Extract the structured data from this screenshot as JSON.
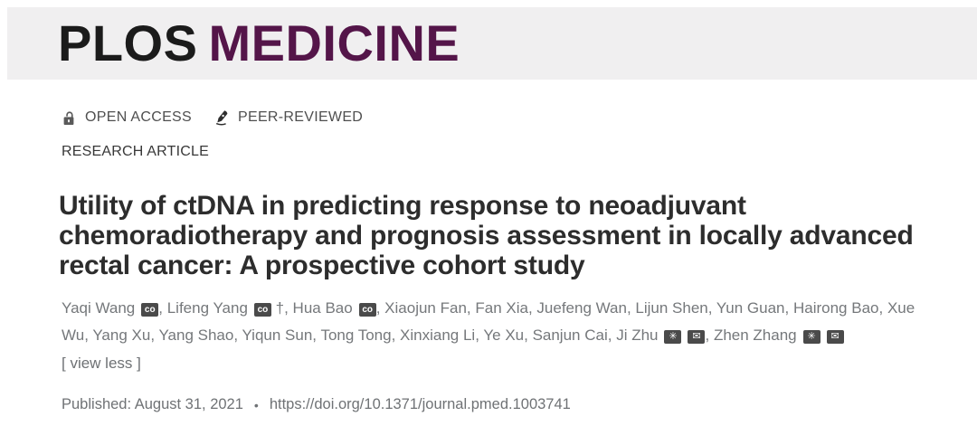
{
  "masthead": {
    "plos": "PLOS",
    "journal": "MEDICINE"
  },
  "meta_bar": {
    "open_access": "OPEN ACCESS",
    "peer_reviewed": "PEER-REVIEWED"
  },
  "article_type": "RESEARCH ARTICLE",
  "title": "Utility of ctDNA in predicting response to neoadjuvant chemoradiotherapy and prognosis assessment in locally advanced rectal cancer: A prospective cohort study",
  "authors": [
    {
      "name": "Yaqi Wang",
      "badges": [
        "equal-contribution"
      ]
    },
    {
      "name": "Lifeng Yang",
      "badges": [
        "equal-contribution"
      ],
      "suffix": "†"
    },
    {
      "name": "Hua Bao",
      "badges": [
        "equal-contribution"
      ]
    },
    {
      "name": "Xiaojun Fan"
    },
    {
      "name": "Fan Xia"
    },
    {
      "name": "Juefeng Wan"
    },
    {
      "name": "Lijun Shen"
    },
    {
      "name": "Yun Guan"
    },
    {
      "name": "Hairong Bao"
    },
    {
      "name": "Xue Wu"
    },
    {
      "name": "Yang Xu"
    },
    {
      "name": "Yang Shao"
    },
    {
      "name": "Yiqun Sun"
    },
    {
      "name": "Tong Tong"
    },
    {
      "name": "Xinxiang Li"
    },
    {
      "name": "Ye Xu"
    },
    {
      "name": "Sanjun Cai"
    },
    {
      "name": "Ji Zhu",
      "badges": [
        "corresponding",
        "email"
      ]
    },
    {
      "name": "Zhen Zhang",
      "badges": [
        "corresponding",
        "email"
      ]
    }
  ],
  "author_badge_glyphs": {
    "equal-contribution": "co",
    "corresponding": "✳",
    "email": "✉"
  },
  "view_less": "[ view less ]",
  "published_label": "Published: August 31, 2021",
  "separator": "•",
  "doi": "https://doi.org/10.1371/journal.pmed.1003741",
  "colors": {
    "brand_purple": "#541549",
    "brand_black": "#1b1b1b",
    "band_gray": "#f0eff0",
    "title_dark": "#2d2d2d",
    "author_gray": "#75787b",
    "badge_gray": "#4a4a4a"
  }
}
